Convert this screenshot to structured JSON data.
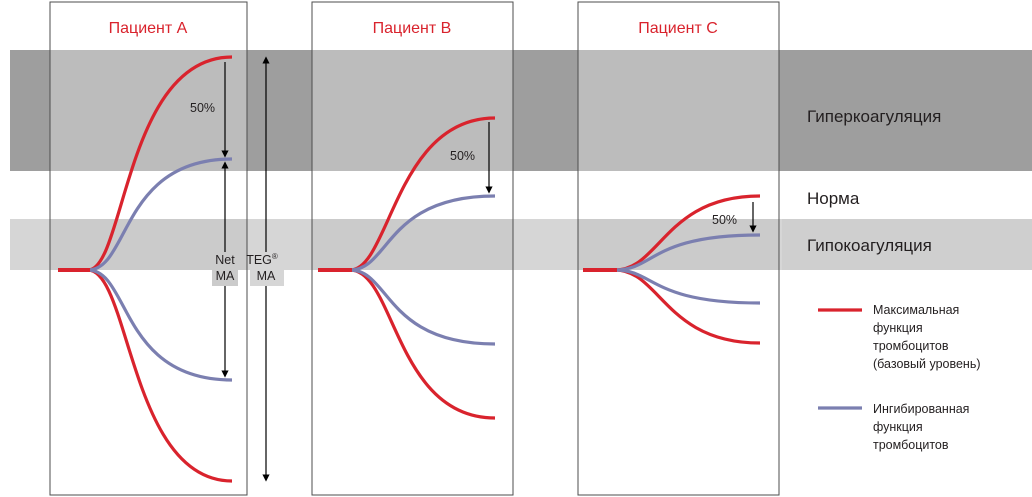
{
  "colors": {
    "max_function": "#d9232d",
    "inhibited_function": "#7b7fb0",
    "hyper_band_outer": "#9e9e9e",
    "hyper_band_inner": "#bcbcbc",
    "hypo_band_outer": "#d6d6d6",
    "hypo_band_inner": "#cbcbcb",
    "frame": "#4d4d4d"
  },
  "patients": [
    {
      "title": "Пациент A",
      "percent_label": "50%"
    },
    {
      "title": "Пациент B",
      "percent_label": "50%"
    },
    {
      "title": "Пациент C",
      "percent_label": "50%"
    }
  ],
  "zones": {
    "hyper": "Гиперкоагуляция",
    "normal": "Норма",
    "hypo": "Гипокоагуляция"
  },
  "annotations": {
    "net_ma_line1": "Net",
    "net_ma_line2": "MA",
    "teg_ma_line1": "TEG",
    "teg_ma_sup": "®",
    "teg_ma_line2": "MA"
  },
  "legend": {
    "max_function": [
      "Максимальная",
      "функция",
      "тромбоцитов",
      "(базовый уровень)"
    ],
    "inhibited_function": [
      "Ингибированная",
      "функция",
      "тромбоцитов"
    ]
  }
}
